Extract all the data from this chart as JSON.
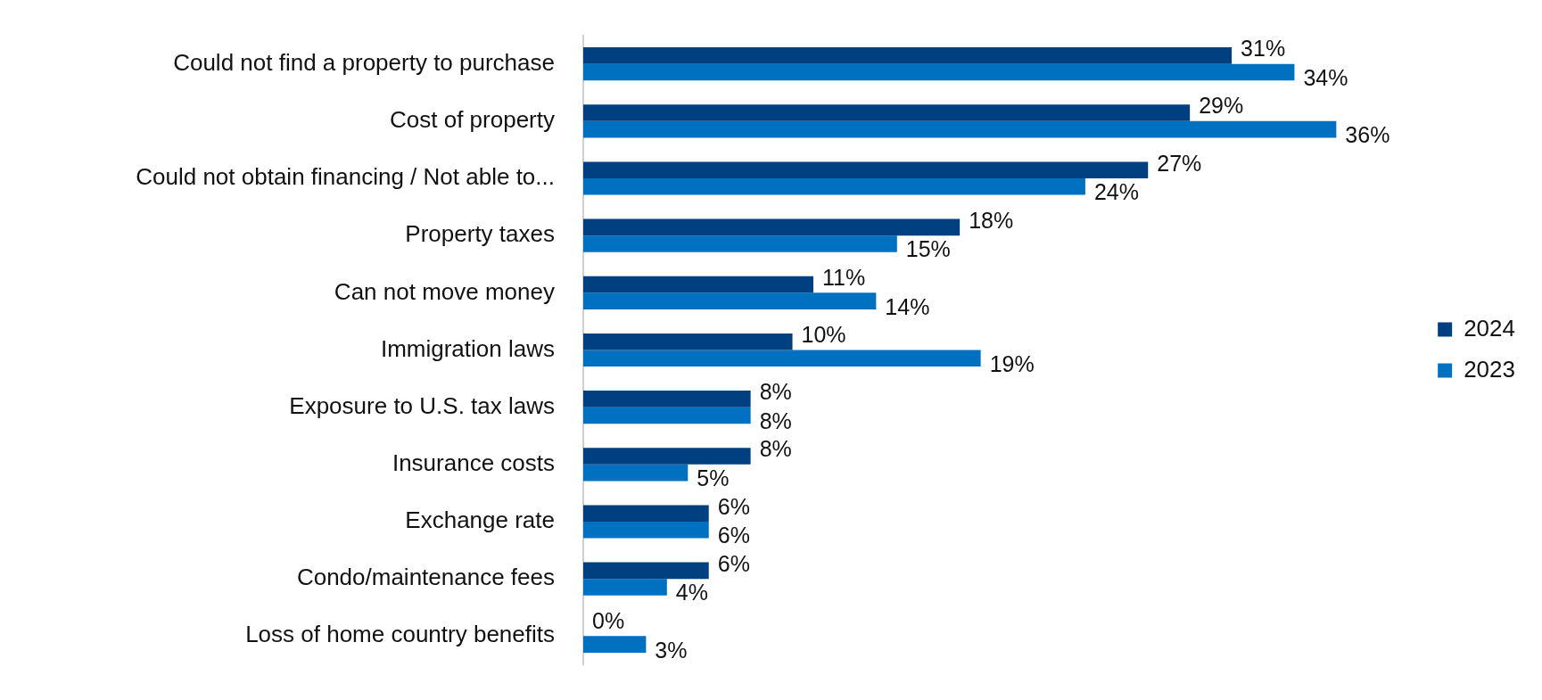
{
  "chart_data": {
    "type": "bar",
    "orientation": "horizontal",
    "categories": [
      "Could not find a property to purchase",
      "Cost of property",
      "Could not obtain financing / Not able to...",
      "Property taxes",
      "Can not move money",
      "Immigration laws",
      "Exposure to U.S. tax laws",
      "Insurance costs",
      "Exchange rate",
      "Condo/maintenance fees",
      "Loss of home country benefits"
    ],
    "series": [
      {
        "name": "2024",
        "color": "#003f80",
        "values": [
          31,
          29,
          27,
          18,
          11,
          10,
          8,
          8,
          6,
          6,
          0
        ],
        "value_labels": [
          "31%",
          "29%",
          "27%",
          "18%",
          "11%",
          "10%",
          "8%",
          "8%",
          "6%",
          "6%",
          "0%"
        ]
      },
      {
        "name": "2023",
        "color": "#0070c0",
        "values": [
          34,
          36,
          24,
          15,
          14,
          19,
          8,
          5,
          6,
          4,
          3
        ],
        "value_labels": [
          "34%",
          "36%",
          "24%",
          "15%",
          "14%",
          "19%",
          "8%",
          "5%",
          "6%",
          "4%",
          "3%"
        ]
      }
    ],
    "legend": "right",
    "grid": false
  }
}
